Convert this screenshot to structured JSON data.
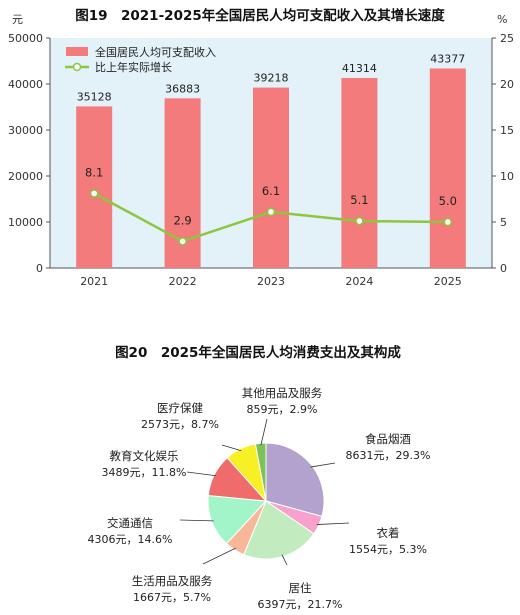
{
  "chart_data": [
    {
      "type": "bar",
      "title": "图19　2021-2025年全国居民人均可支配收入及其增长速度",
      "left_unit": "元",
      "right_unit": "%",
      "categories": [
        "2021",
        "2022",
        "2023",
        "2024",
        "2025"
      ],
      "ylim_left": [
        0,
        50000
      ],
      "yticks_left": [
        "0",
        "10000",
        "20000",
        "30000",
        "40000",
        "50000"
      ],
      "ylim_right": [
        0,
        25
      ],
      "yticks_right": [
        "0",
        "5",
        "10",
        "15",
        "20",
        "25"
      ],
      "grid": false,
      "legend_position": "top-left",
      "series": [
        {
          "name": "全国居民人均可支配收入",
          "type": "bar",
          "axis": "left",
          "color": "#f47b7b",
          "values": [
            35128,
            36883,
            39218,
            41314,
            43377
          ],
          "labels": [
            "35128",
            "36883",
            "39218",
            "41314",
            "43377"
          ]
        },
        {
          "name": "比上年实际增长",
          "type": "line",
          "axis": "right",
          "color": "#8dc63f",
          "values": [
            8.1,
            2.9,
            6.1,
            5.1,
            5.0
          ],
          "labels": [
            "8.1",
            "2.9",
            "6.1",
            "5.1",
            "5.0"
          ]
        }
      ]
    },
    {
      "type": "pie",
      "title": "图20　2025年全国居民人均消费支出及其构成",
      "slices": [
        {
          "name": "食品烟酒",
          "value": 8631,
          "value_text": "8631元，29.3%",
          "percent": 29.3,
          "color": "#b3a2cd"
        },
        {
          "name": "衣着",
          "value": 1554,
          "value_text": "1554元，5.3%",
          "percent": 5.3,
          "color": "#f7a1cc"
        },
        {
          "name": "居住",
          "value": 6397,
          "value_text": "6397元，21.7%",
          "percent": 21.7,
          "color": "#c2ecc0"
        },
        {
          "name": "生活用品及服务",
          "value": 1667,
          "value_text": "1667元，5.7%",
          "percent": 5.7,
          "color": "#f9b79a"
        },
        {
          "name": "交通通信",
          "value": 4306,
          "value_text": "4306元，14.6%",
          "percent": 14.6,
          "color": "#a2f5c8"
        },
        {
          "name": "教育文化娱乐",
          "value": 3489,
          "value_text": "3489元，11.8%",
          "percent": 11.8,
          "color": "#f06b6b"
        },
        {
          "name": "医疗保健",
          "value": 2573,
          "value_text": "2573元，8.7%",
          "percent": 8.7,
          "color": "#f7f024"
        },
        {
          "name": "其他用品及服务",
          "value": 859,
          "value_text": "859元，2.9%",
          "percent": 2.9,
          "color": "#7dc15a"
        }
      ]
    }
  ]
}
